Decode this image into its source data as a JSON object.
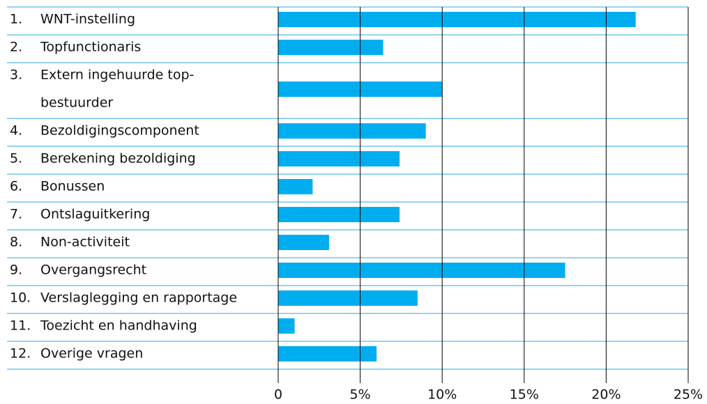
{
  "chart_data": {
    "type": "bar",
    "orientation": "horizontal",
    "category_numbers": [
      "1.",
      "2.",
      "3.",
      "4.",
      "5.",
      "6.",
      "7.",
      "8.",
      "9.",
      "10.",
      "11.",
      "12."
    ],
    "categories": [
      "WNT-instelling",
      "Topfunctionaris",
      [
        "Extern ingehuurde top-",
        "bestuurder"
      ],
      "Bezoldigingscomponent",
      "Berekening bezoldiging",
      "Bonussen",
      "Ontslaguitkering",
      "Non-activiteit",
      "Overgangsrecht",
      "Verslaglegging en rapportage",
      "Toezicht en handhaving",
      "Overige vragen"
    ],
    "values": [
      21.8,
      6.4,
      10.0,
      9.0,
      7.4,
      2.1,
      7.4,
      3.1,
      17.5,
      8.5,
      1.0,
      6.0
    ],
    "color": "#00aeef",
    "row_line_color": "#29a8e0",
    "grid_color": "#000000",
    "xlim": [
      0,
      25
    ],
    "xticks": [
      0,
      {
        "value": 5,
        "label": "5%"
      },
      {
        "value": 10,
        "label": "10%"
      },
      {
        "value": 15,
        "label": "15%"
      },
      {
        "value": 20,
        "label": "20%"
      },
      {
        "value": 25,
        "label": "25%"
      }
    ],
    "grid": true
  }
}
